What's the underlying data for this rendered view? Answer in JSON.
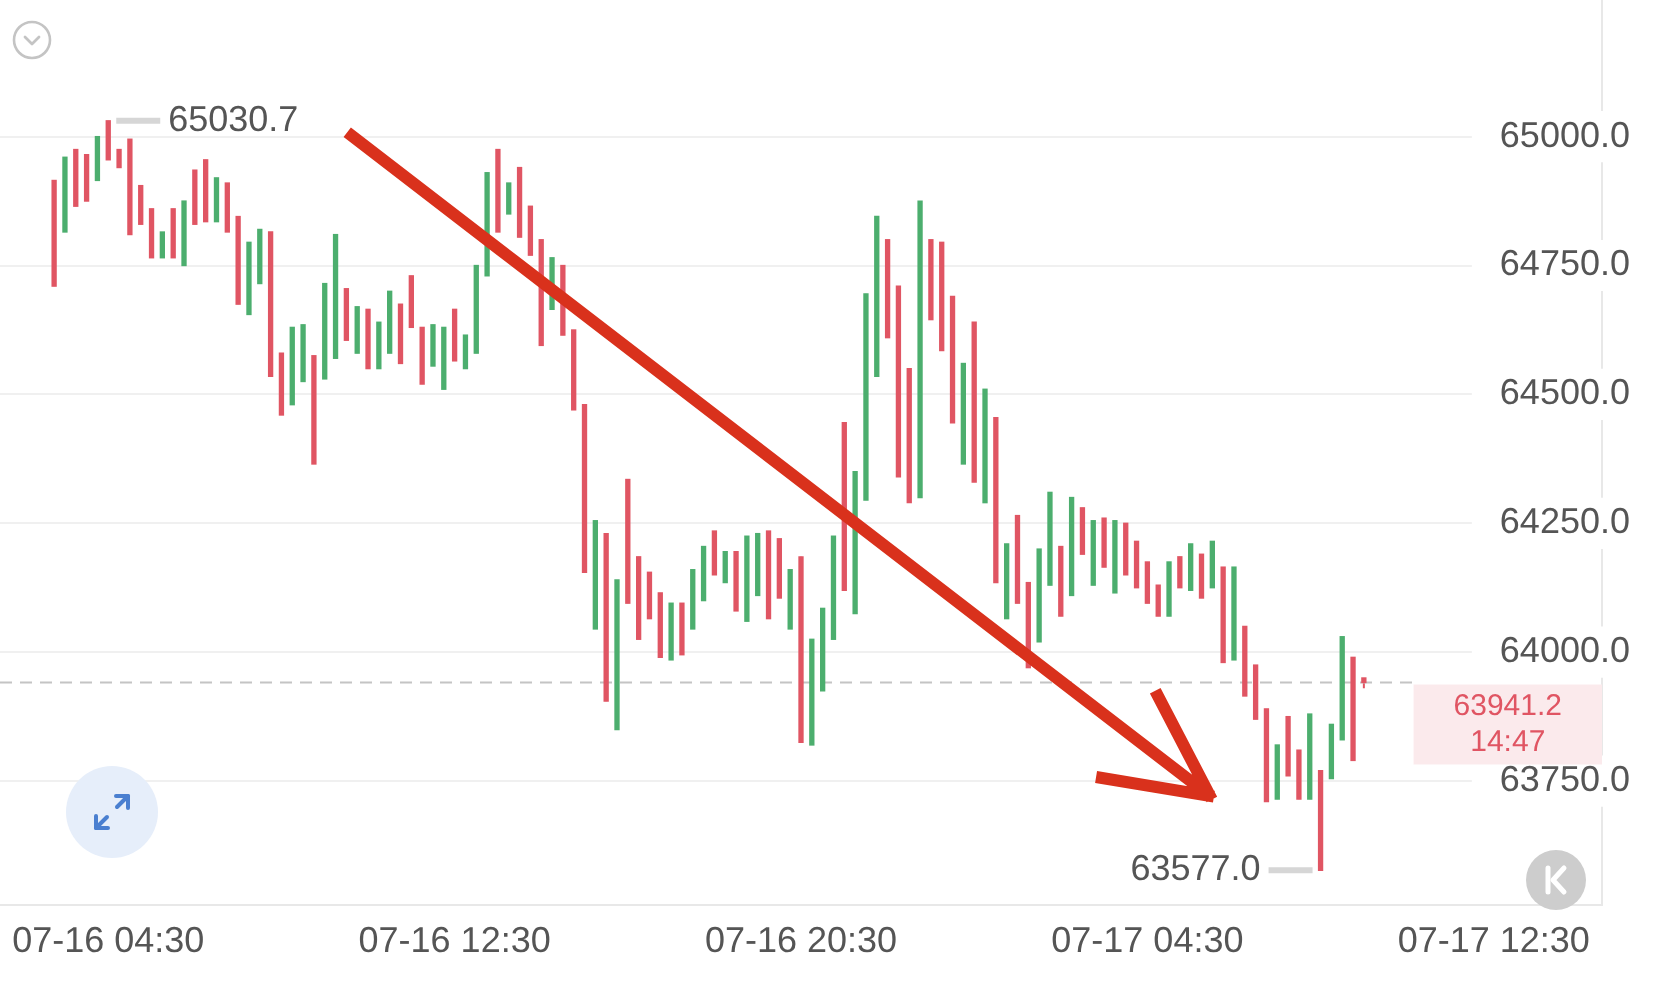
{
  "chart_data": {
    "type": "candlestick",
    "categories": [
      null,
      null,
      null,
      null,
      null,
      null,
      null,
      null,
      null,
      null,
      "07-16 04:30",
      null,
      null,
      null,
      null,
      null,
      null,
      null,
      null,
      null,
      null,
      null,
      null,
      null,
      null,
      null,
      null,
      null,
      null,
      null,
      null,
      null,
      null,
      null,
      null,
      null,
      null,
      null,
      null,
      null,
      null,
      null,
      "07-16 12:30",
      null,
      null,
      null,
      null,
      null,
      null,
      null,
      null,
      null,
      null,
      null,
      null,
      null,
      null,
      null,
      null,
      null,
      null,
      null,
      null,
      null,
      null,
      null,
      null,
      null,
      null,
      null,
      null,
      null,
      null,
      null,
      "07-16 20:30",
      null,
      null,
      null,
      null,
      null,
      null,
      null,
      null,
      null,
      null,
      null,
      null,
      null,
      null,
      null,
      null,
      null,
      null,
      null,
      null,
      null,
      null,
      null,
      null,
      null,
      null,
      null,
      null,
      null,
      null,
      null,
      "07-17 04:30",
      null,
      null,
      null,
      null,
      null,
      null,
      null,
      null,
      null,
      null,
      null,
      null,
      null,
      null,
      null,
      null,
      null,
      null,
      null,
      null,
      null,
      null,
      null,
      null,
      null,
      null,
      null,
      null,
      null,
      null,
      null,
      "07-17 12:30",
      null,
      null,
      null,
      null,
      null,
      null,
      null,
      null,
      null,
      null
    ],
    "ohlc": [
      null,
      null,
      null,
      null,
      null,
      [
        64915,
        64915,
        64710,
        64710
      ],
      [
        64815,
        64960,
        64815,
        64960
      ],
      [
        64975,
        64975,
        64865,
        64865
      ],
      [
        64965,
        64965,
        64875,
        64875
      ],
      [
        64915,
        65000,
        64915,
        65000
      ],
      [
        65030.7,
        65030.7,
        64955,
        64955
      ],
      [
        64975,
        64975,
        64940,
        64940
      ],
      [
        64995,
        64995,
        64810,
        64810
      ],
      [
        64905,
        64905,
        64830,
        64830
      ],
      [
        64860,
        64860,
        64765,
        64765
      ],
      [
        64765,
        64815,
        64765,
        64815
      ],
      [
        64860,
        64860,
        64765,
        64765
      ],
      [
        64750,
        64875,
        64750,
        64875
      ],
      [
        64935,
        64935,
        64830,
        64830
      ],
      [
        64955,
        64955,
        64835,
        64835
      ],
      [
        64835,
        64920,
        64835,
        64920
      ],
      [
        64910,
        64910,
        64815,
        64815
      ],
      [
        64845,
        64845,
        64675,
        64675
      ],
      [
        64655,
        64795,
        64655,
        64795
      ],
      [
        64715,
        64820,
        64715,
        64820
      ],
      [
        64815,
        64815,
        64535,
        64535
      ],
      [
        64580,
        64580,
        64460,
        64460
      ],
      [
        64480,
        64630,
        64480,
        64630
      ],
      [
        64525,
        64635,
        64525,
        64635
      ],
      [
        64575,
        64575,
        64365,
        64365
      ],
      [
        64530,
        64715,
        64530,
        64715
      ],
      [
        64570,
        64810,
        64570,
        64810
      ],
      [
        64705,
        64705,
        64605,
        64605
      ],
      [
        64580,
        64670,
        64580,
        64670
      ],
      [
        64665,
        64665,
        64550,
        64550
      ],
      [
        64550,
        64640,
        64550,
        64640
      ],
      [
        64580,
        64700,
        64580,
        64700
      ],
      [
        64675,
        64675,
        64560,
        64560
      ],
      [
        64730,
        64730,
        64630,
        64630
      ],
      [
        64630,
        64630,
        64520,
        64520
      ],
      [
        64555,
        64635,
        64555,
        64635
      ],
      [
        64510,
        64630,
        64510,
        64630
      ],
      [
        64665,
        64665,
        64565,
        64565
      ],
      [
        64550,
        64615,
        64550,
        64615
      ],
      [
        64580,
        64750,
        64580,
        64750
      ],
      [
        64730,
        64930,
        64730,
        64930
      ],
      [
        64975,
        64975,
        64815,
        64815
      ],
      [
        64850,
        64910,
        64850,
        64910
      ],
      [
        64940,
        64940,
        64805,
        64805
      ],
      [
        64865,
        64865,
        64770,
        64770
      ],
      [
        64800,
        64800,
        64595,
        64595
      ],
      [
        64665,
        64765,
        64665,
        64765
      ],
      [
        64750,
        64750,
        64615,
        64615
      ],
      [
        64625,
        64625,
        64470,
        64470
      ],
      [
        64480,
        64480,
        64155,
        64155
      ],
      [
        64045,
        64255,
        64045,
        64255
      ],
      [
        64230,
        64230,
        63905,
        63905
      ],
      [
        63850,
        64140,
        63850,
        64140
      ],
      [
        64335,
        64335,
        64095,
        64095
      ],
      [
        64185,
        64185,
        64025,
        64025
      ],
      [
        64155,
        64155,
        64065,
        64065
      ],
      [
        64115,
        64115,
        63990,
        63990
      ],
      [
        63985,
        64095,
        63985,
        64095
      ],
      [
        64095,
        64095,
        63995,
        63995
      ],
      [
        64045,
        64160,
        64045,
        64160
      ],
      [
        64100,
        64205,
        64100,
        64205
      ],
      [
        64235,
        64235,
        64150,
        64150
      ],
      [
        64135,
        64195,
        64135,
        64195
      ],
      [
        64195,
        64195,
        64080,
        64080
      ],
      [
        64060,
        64225,
        64060,
        64225
      ],
      [
        64110,
        64230,
        64110,
        64230
      ],
      [
        64235,
        64235,
        64065,
        64065
      ],
      [
        64220,
        64220,
        64105,
        64105
      ],
      [
        64045,
        64160,
        64045,
        64160
      ],
      [
        64185,
        64185,
        63825,
        63825
      ],
      [
        63820,
        64025,
        63820,
        64025
      ],
      [
        63925,
        64085,
        63925,
        64085
      ],
      [
        64025,
        64225,
        64025,
        64225
      ],
      [
        64445,
        64445,
        64120,
        64120
      ],
      [
        64075,
        64350,
        64075,
        64350
      ],
      [
        64295,
        64695,
        64295,
        64695
      ],
      [
        64535,
        64845,
        64535,
        64845
      ],
      [
        64800,
        64800,
        64610,
        64610
      ],
      [
        64710,
        64710,
        64340,
        64340
      ],
      [
        64550,
        64550,
        64290,
        64290
      ],
      [
        64300,
        64875,
        64300,
        64875
      ],
      [
        64800,
        64800,
        64645,
        64645
      ],
      [
        64795,
        64795,
        64585,
        64585
      ],
      [
        64690,
        64690,
        64445,
        64445
      ],
      [
        64365,
        64560,
        64365,
        64560
      ],
      [
        64640,
        64640,
        64330,
        64330
      ],
      [
        64290,
        64510,
        64290,
        64510
      ],
      [
        64455,
        64455,
        64135,
        64135
      ],
      [
        64065,
        64210,
        64065,
        64210
      ],
      [
        64265,
        64265,
        64095,
        64095
      ],
      [
        64135,
        64135,
        63970,
        63970
      ],
      [
        64020,
        64200,
        64020,
        64200
      ],
      [
        64130,
        64310,
        64130,
        64310
      ],
      [
        64205,
        64205,
        64070,
        64070
      ],
      [
        64110,
        64300,
        64110,
        64300
      ],
      [
        64280,
        64280,
        64190,
        64190
      ],
      [
        64130,
        64255,
        64130,
        64255
      ],
      [
        64260,
        64260,
        64165,
        64165
      ],
      [
        64115,
        64255,
        64115,
        64255
      ],
      [
        64250,
        64250,
        64150,
        64150
      ],
      [
        64215,
        64215,
        64125,
        64125
      ],
      [
        64175,
        64175,
        64095,
        64095
      ],
      [
        64130,
        64130,
        64070,
        64070
      ],
      [
        64070,
        64175,
        64070,
        64175
      ],
      [
        64185,
        64185,
        64125,
        64125
      ],
      [
        64120,
        64210,
        64120,
        64210
      ],
      [
        64190,
        64190,
        64105,
        64105
      ],
      [
        64125,
        64215,
        64125,
        64215
      ],
      [
        64165,
        64165,
        63980,
        63980
      ],
      [
        63985,
        64165,
        63985,
        64165
      ],
      [
        64050,
        64050,
        63915,
        63915
      ],
      [
        63975,
        63975,
        63870,
        63870
      ],
      [
        63890,
        63890,
        63710,
        63710
      ],
      [
        63715,
        63820,
        63715,
        63820
      ],
      [
        63875,
        63875,
        63760,
        63760
      ],
      [
        63810,
        63810,
        63715,
        63715
      ],
      [
        63715,
        63880,
        63715,
        63880
      ],
      [
        63770,
        63770,
        63577,
        63577
      ],
      [
        63755,
        63860,
        63755,
        63860
      ],
      [
        63830,
        64030,
        63830,
        64030
      ],
      [
        63990,
        63990,
        63790,
        63790
      ],
      [
        63950,
        63950,
        63930,
        63941.2
      ],
      null,
      null,
      null,
      null,
      null,
      null,
      null,
      null,
      null,
      null,
      null,
      null,
      null,
      null,
      null,
      null,
      null,
      null,
      null,
      null,
      null,
      null
    ],
    "colors": [
      null,
      null,
      null,
      null,
      null,
      "#e05563",
      "#4cae6e",
      "#e05563",
      "#e05563",
      "#4cae6e",
      "#e05563",
      "#e05563",
      "#e05563",
      "#e05563",
      "#e05563",
      "#4cae6e",
      "#e05563",
      "#4cae6e",
      "#e05563",
      "#e05563",
      "#4cae6e",
      "#e05563",
      "#e05563",
      "#4cae6e",
      "#4cae6e",
      "#e05563",
      "#e05563",
      "#4cae6e",
      "#4cae6e",
      "#e05563",
      "#4cae6e",
      "#4cae6e",
      "#e05563",
      "#4cae6e",
      "#e05563",
      "#4cae6e",
      "#4cae6e",
      "#e05563",
      "#e05563",
      "#e05563",
      "#4cae6e",
      "#4cae6e",
      "#e05563",
      "#4cae6e",
      "#4cae6e",
      "#4cae6e",
      "#e05563",
      "#4cae6e",
      "#e05563",
      "#e05563",
      "#e05563",
      "#4cae6e",
      "#e05563",
      "#e05563",
      "#e05563",
      "#4cae6e",
      "#e05563",
      "#4cae6e",
      "#e05563",
      "#e05563",
      "#e05563",
      "#e05563",
      "#4cae6e",
      "#e05563",
      "#4cae6e",
      "#4cae6e",
      "#e05563",
      "#4cae6e",
      "#e05563",
      "#4cae6e",
      "#4cae6e",
      "#e05563",
      "#e05563",
      "#4cae6e",
      "#e05563",
      "#4cae6e",
      "#4cae6e",
      "#4cae6e",
      "#e05563",
      "#4cae6e",
      "#4cae6e",
      "#4cae6e",
      "#e05563",
      "#e05563",
      "#e05563",
      "#4cae6e",
      "#e05563",
      "#e05563",
      "#e05563",
      "#4cae6e",
      "#e05563",
      "#4cae6e",
      "#e05563",
      "#4cae6e",
      "#e05563",
      "#e05563",
      "#4cae6e",
      "#4cae6e",
      "#e05563",
      "#4cae6e",
      "#e05563",
      "#4cae6e",
      "#e05563",
      "#4cae6e",
      "#e05563",
      "#e05563",
      "#e05563",
      "#e05563",
      "#4cae6e",
      "#e05563",
      "#4cae6e",
      "#e05563",
      "#4cae6e",
      "#e05563",
      "#4cae6e",
      "#e05563",
      "#e05563",
      "#e05563",
      "#4cae6e",
      "#e05563",
      "#e05563",
      "#4cae6e",
      "#e05563",
      "#4cae6e",
      "#4cae6e",
      "#e05563",
      "#e05563",
      null,
      null,
      null,
      null,
      null,
      null,
      null,
      null,
      null,
      null,
      null,
      null,
      null,
      null,
      null,
      null,
      null,
      null,
      null,
      null,
      null,
      null
    ],
    "ylim": [
      63510,
      65265
    ],
    "yticks": [
      {
        "value": 63750,
        "label": "63750.0"
      },
      {
        "value": 64000,
        "label": "64000.0"
      },
      {
        "value": 64250,
        "label": "64250.0"
      },
      {
        "value": 64500,
        "label": "64500.0"
      },
      {
        "value": 64750,
        "label": "64750.0"
      },
      {
        "value": 65000,
        "label": "65000.0"
      }
    ],
    "grid": "y",
    "ref_lines": [
      {
        "axis": "y",
        "value": 63941.2,
        "label": "63941.2",
        "color": "#c4c4c4",
        "line_style": "dashed"
      }
    ],
    "annotations": [
      {
        "text": "65030.7",
        "x": "07-16 04:30",
        "y": 65030.7
      },
      "63577.0",
      "14:47"
    ]
  }
}
